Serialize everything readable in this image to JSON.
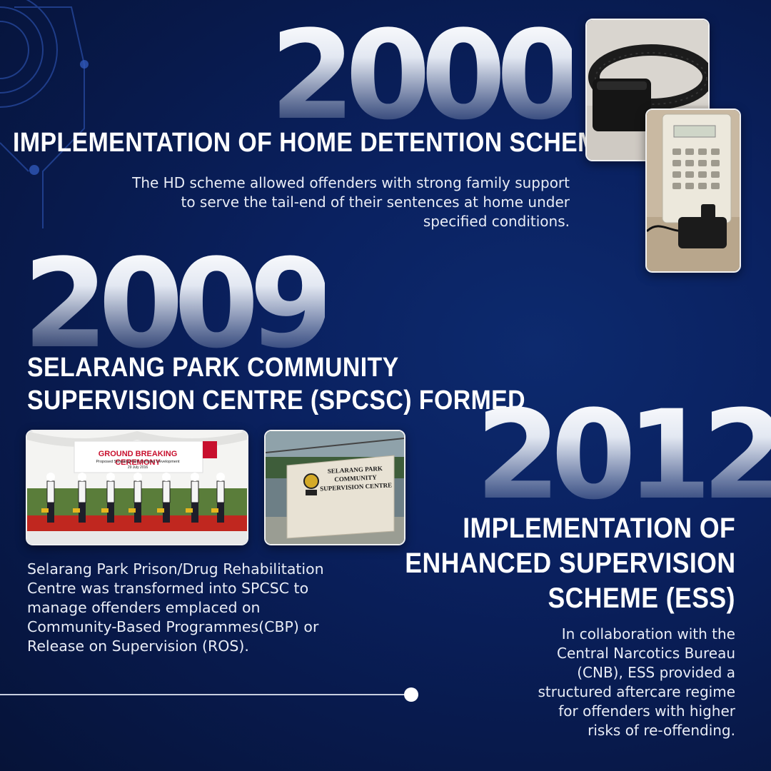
{
  "section_2000": {
    "year": "2000",
    "title": "IMPLEMENTATION OF HOME DETENTION SCHEME (HD)",
    "description_lines": [
      "The HD scheme allowed offenders with strong family support",
      "to serve the tail-end of their sentences at home under",
      "specified conditions."
    ]
  },
  "section_2009": {
    "year": "2009",
    "title_lines": [
      "SELARANG PARK COMMUNITY",
      "SUPERVISION CENTRE (SPCSC) FORMED"
    ],
    "description_lines": [
      "Selarang Park Prison/Drug Rehabilitation",
      "Centre was transformed into SPCSC to",
      "manage offenders emplaced on",
      "Community-Based Programmes(CBP) or",
      "Release on Supervision (ROS)."
    ],
    "photo_ceremony": {
      "banner_title": "GROUND BREAKING CEREMONY",
      "banner_subtitle": "Proposed Selarang Park Complex Development",
      "banner_date": "29 July 2016"
    },
    "photo_sign": {
      "sign_lines": [
        "SELARANG PARK",
        "COMMUNITY",
        "SUPERVISION CENTRE"
      ]
    }
  },
  "section_2012": {
    "year": "2012",
    "title_lines": [
      "IMPLEMENTATION OF",
      "ENHANCED SUPERVISION",
      "SCHEME (ESS)"
    ],
    "description_lines": [
      "In collaboration with the",
      "Central Narcotics Bureau",
      "(CNB), ESS provided a",
      "structured aftercare regime",
      "for offenders with higher",
      "risks of re-offending."
    ]
  },
  "colors": {
    "background": "#0a2160",
    "text": "#ffffff",
    "banner_red": "#c8102e",
    "carpet_red": "#c0271f"
  }
}
